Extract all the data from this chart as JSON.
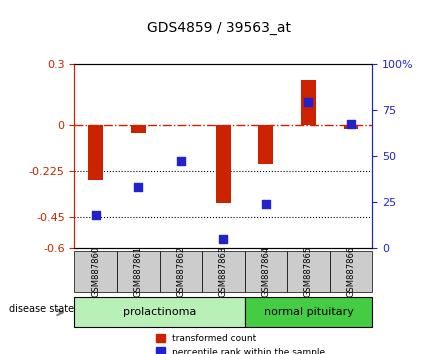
{
  "title": "GDS4859 / 39563_at",
  "samples": [
    "GSM887860",
    "GSM887861",
    "GSM887862",
    "GSM887863",
    "GSM887864",
    "GSM887865",
    "GSM887866"
  ],
  "transformed_count": [
    -0.27,
    -0.04,
    0.0,
    -0.38,
    -0.19,
    0.22,
    -0.02
  ],
  "percentile_rank": [
    18,
    33,
    47,
    5,
    24,
    79,
    67
  ],
  "groups": [
    {
      "label": "prolactinoma",
      "indices": [
        0,
        1,
        2,
        3
      ],
      "color": "#90ee90"
    },
    {
      "label": "normal pituitary",
      "indices": [
        4,
        5,
        6
      ],
      "color": "#00cc00"
    }
  ],
  "ylim_left": [
    -0.6,
    0.3
  ],
  "ylim_right": [
    0,
    100
  ],
  "yticks_left": [
    -0.6,
    -0.45,
    -0.225,
    0,
    0.3
  ],
  "ytick_labels_left": [
    "-0.6",
    "-0.45",
    "-0.225",
    "0",
    "0.3"
  ],
  "yticks_right": [
    0,
    25,
    50,
    75,
    100
  ],
  "ytick_labels_right": [
    "0",
    "25",
    "50",
    "75",
    "100%"
  ],
  "hlines": [
    -0.225,
    -0.45
  ],
  "bar_color": "#cc2200",
  "dot_color": "#2222cc",
  "legend_items": [
    "transformed count",
    "percentile rank within the sample"
  ],
  "disease_state_label": "disease state",
  "xlabel_rotation": -90,
  "background_color": "#ffffff",
  "group_row_color_light": "#b8f0b8",
  "group_row_color_dark": "#44cc44",
  "sample_box_color": "#cccccc",
  "dashed_zero_color": "#cc2200"
}
